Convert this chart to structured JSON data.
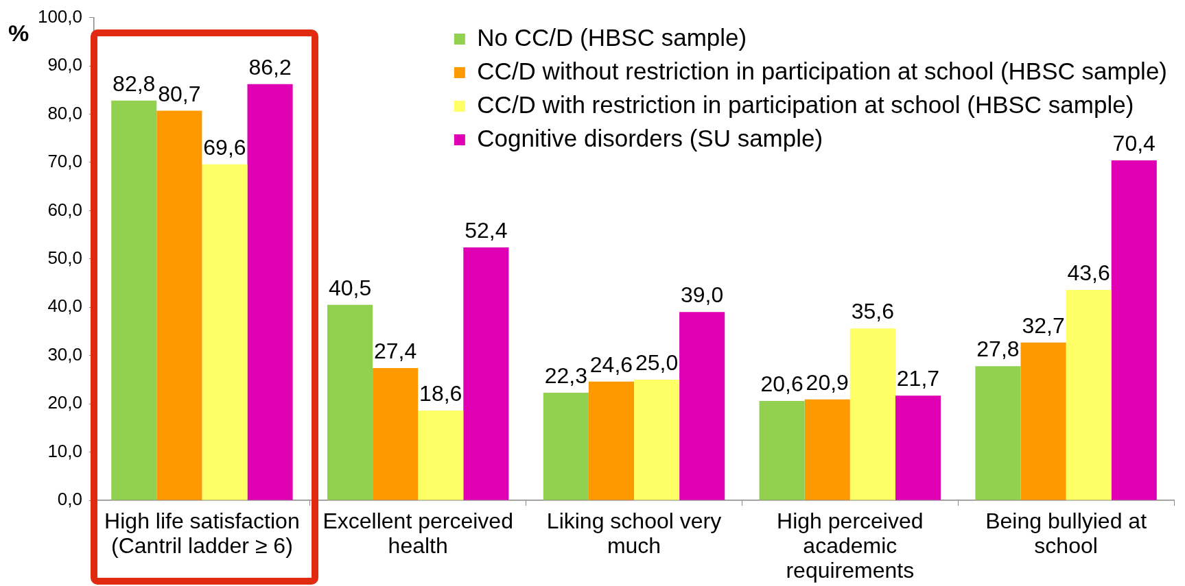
{
  "chart_data": {
    "type": "bar",
    "ylabel": "%",
    "categories": [
      "High life satisfaction (Cantril ladder ≥ 6)",
      "Excellent perceived health",
      "Liking school very much",
      "High perceived academic requirements",
      "Being bullyied at school"
    ],
    "series": [
      {
        "name": "No CC/D (HBSC sample)",
        "color": "#92d050",
        "values": [
          82.8,
          40.5,
          22.3,
          20.6,
          27.8
        ],
        "value_labels": [
          "82,8",
          "40,5",
          "22,3",
          "20,6",
          "27,8"
        ]
      },
      {
        "name": "CC/D without restriction in participation at school (HBSC sample)",
        "color": "#ff9900",
        "values": [
          80.7,
          27.4,
          24.6,
          20.9,
          32.7
        ],
        "value_labels": [
          "80,7",
          "27,4",
          "24,6",
          "20,9",
          "32,7"
        ]
      },
      {
        "name": "CC/D with restriction in participation at school (HBSC sample)",
        "color": "#ffff66",
        "values": [
          69.6,
          18.6,
          25.0,
          35.6,
          43.6
        ],
        "value_labels": [
          "69,6",
          "18,6",
          "25,0",
          "35,6",
          "43,6"
        ]
      },
      {
        "name": "Cognitive disorders (SU sample)",
        "color": "#e000b4",
        "values": [
          86.2,
          52.4,
          39.0,
          21.7,
          70.4
        ],
        "value_labels": [
          "86,2",
          "52,4",
          "39,0",
          "21,7",
          "70,4"
        ]
      }
    ],
    "ylim": [
      0,
      100
    ],
    "yticks": [
      {
        "value": 0,
        "label": "0,0"
      },
      {
        "value": 10,
        "label": "10,0"
      },
      {
        "value": 20,
        "label": "20,0"
      },
      {
        "value": 30,
        "label": "30,0"
      },
      {
        "value": 40,
        "label": "40,0"
      },
      {
        "value": 50,
        "label": "50,0"
      },
      {
        "value": 60,
        "label": "60,0"
      },
      {
        "value": 70,
        "label": "70,0"
      },
      {
        "value": 80,
        "label": "80,0"
      },
      {
        "value": 90,
        "label": "90,0"
      },
      {
        "value": 100,
        "label": "100,0"
      }
    ],
    "legend": "top right"
  }
}
